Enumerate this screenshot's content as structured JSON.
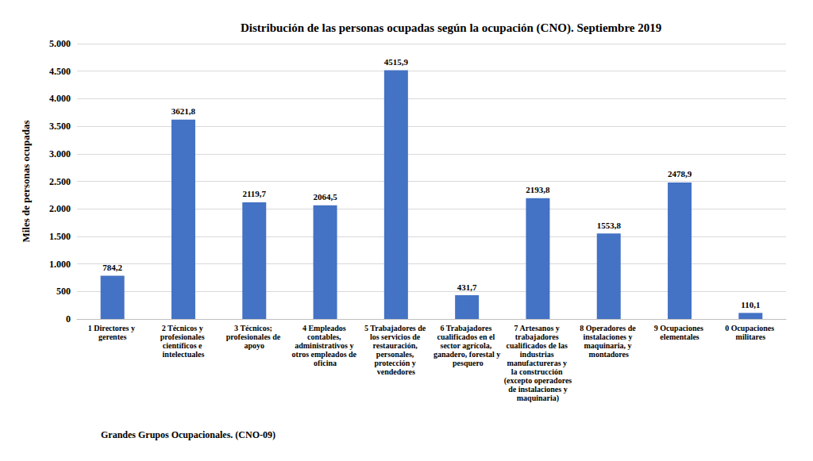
{
  "chart_data": {
    "type": "bar",
    "title": "Distribución de las personas ocupadas según la ocupación (CNO). Septiembre 2019",
    "x_label": "Grandes Grupos Ocupacionales. (CNO-09)",
    "y_label": "Miles de personas ocupadas",
    "categories": [
      "1 Directores y gerentes",
      "2 Técnicos y profesionales científicos e intelectuales",
      "3 Técnicos; profesionales de apoyo",
      "4 Empleados contables, administrativos y otros empleados de oficina",
      "5 Trabajadores de los servicios de restauración, personales, protección y vendedores",
      "6 Trabajadores cualificados en el sector agrícola, ganadero, forestal y pesquero",
      "7 Artesanos y trabajadores cualificados de las industrias manufactureras y la construcción (excepto operadores de instalaciones y maquinaria)",
      "8 Operadores de instalaciones y maquinaria, y montadores",
      "9 Ocupaciones elementales",
      "0 Ocupaciones militares"
    ],
    "values": [
      784.2,
      3621.8,
      2119.7,
      2064.5,
      4515.9,
      431.7,
      2193.8,
      1553.8,
      2478.9,
      110.1
    ],
    "value_labels": [
      "784,2",
      "3621,8",
      "2119,7",
      "2064,5",
      "4515,9",
      "431,7",
      "2193,8",
      "1553,8",
      "2478,9",
      "110,1"
    ],
    "color": "#4472c4",
    "ylim": [
      0,
      5000
    ],
    "yticks": [
      0,
      500,
      {
        "value": 1000,
        "label": "1.000"
      },
      {
        "value": 1500,
        "label": "1.500"
      },
      {
        "value": 2000,
        "label": "2.000"
      },
      {
        "value": 2500,
        "label": "2.500"
      },
      {
        "value": 3000,
        "label": "3.000"
      },
      {
        "value": 3500,
        "label": "3.500"
      },
      {
        "value": 4000,
        "label": "4.000"
      },
      {
        "value": 4500,
        "label": "4.500"
      },
      {
        "value": 5000,
        "label": "5.000"
      }
    ],
    "grid": true,
    "data_labels": true
  }
}
